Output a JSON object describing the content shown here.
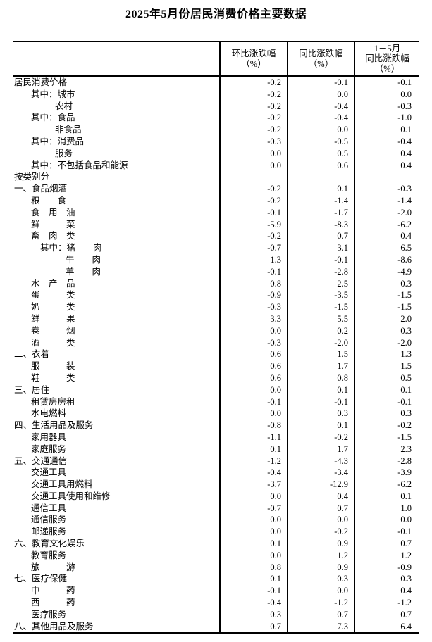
{
  "title": "2025年5月份居民消费价格主要数据",
  "chart_data": {
    "type": "table",
    "title": "2025年5月份居民消费价格主要数据",
    "columns": [
      "环比涨跌幅（%）",
      "同比涨跌幅（%）",
      "1－5月同比涨跌幅（%）"
    ],
    "header_lines": [
      [
        "环比涨跌幅",
        "（%）"
      ],
      [
        "同比涨跌幅",
        "（%）"
      ],
      [
        "1－5月",
        "同比涨跌幅",
        "（%）"
      ]
    ],
    "rows": [
      {
        "label": "居民消费价格",
        "indent": 0,
        "values": [
          "-0.2",
          "-0.1",
          "-0.1"
        ]
      },
      {
        "label": "其中：城市",
        "indent": 1,
        "values": [
          "-0.2",
          "0.0",
          "0.0"
        ]
      },
      {
        "label": "农村",
        "indent": 3,
        "values": [
          "-0.2",
          "-0.4",
          "-0.3"
        ]
      },
      {
        "label": "其中：食品",
        "indent": 1,
        "values": [
          "-0.2",
          "-0.4",
          "-1.0"
        ]
      },
      {
        "label": "非食品",
        "indent": 3,
        "values": [
          "-0.2",
          "0.0",
          "0.1"
        ]
      },
      {
        "label": "其中：消费品",
        "indent": 1,
        "values": [
          "-0.3",
          "-0.5",
          "-0.4"
        ]
      },
      {
        "label": "服务",
        "indent": 3,
        "values": [
          "0.0",
          "0.5",
          "0.4"
        ]
      },
      {
        "label": "其中：不包括食品和能源",
        "indent": 1,
        "values": [
          "0.0",
          "0.6",
          "0.4"
        ]
      },
      {
        "label": "按类别分",
        "indent": 0,
        "values": [
          "",
          "",
          ""
        ]
      },
      {
        "label": "一、食品烟酒",
        "indent": 0,
        "values": [
          "-0.2",
          "0.1",
          "-0.3"
        ]
      },
      {
        "label": "粮　　食",
        "indent": 1,
        "values": [
          "-0.2",
          "-1.4",
          "-1.4"
        ]
      },
      {
        "label": "食　用　油",
        "indent": 1,
        "values": [
          "-0.1",
          "-1.7",
          "-2.0"
        ]
      },
      {
        "label": "鲜　　　菜",
        "indent": 1,
        "values": [
          "-5.9",
          "-8.3",
          "-6.2"
        ]
      },
      {
        "label": "畜　肉　类",
        "indent": 1,
        "values": [
          "-0.2",
          "0.7",
          "0.4"
        ]
      },
      {
        "label": "其中：猪　　肉",
        "indent": 2,
        "values": [
          "-0.7",
          "3.1",
          "6.5"
        ]
      },
      {
        "label": "牛　　肉",
        "indent": 4,
        "values": [
          "1.3",
          "-0.1",
          "-8.6"
        ]
      },
      {
        "label": "羊　　肉",
        "indent": 4,
        "values": [
          "-0.1",
          "-2.8",
          "-4.9"
        ]
      },
      {
        "label": "水　产　品",
        "indent": 1,
        "values": [
          "0.8",
          "2.5",
          "0.3"
        ]
      },
      {
        "label": "蛋　　　类",
        "indent": 1,
        "values": [
          "-0.9",
          "-3.5",
          "-1.5"
        ]
      },
      {
        "label": "奶　　　类",
        "indent": 1,
        "values": [
          "-0.3",
          "-1.5",
          "-1.5"
        ]
      },
      {
        "label": "鲜　　　果",
        "indent": 1,
        "values": [
          "3.3",
          "5.5",
          "2.0"
        ]
      },
      {
        "label": "卷　　　烟",
        "indent": 1,
        "values": [
          "0.0",
          "0.2",
          "0.3"
        ]
      },
      {
        "label": "酒　　　类",
        "indent": 1,
        "values": [
          "-0.3",
          "-2.0",
          "-2.0"
        ]
      },
      {
        "label": "二、衣着",
        "indent": 0,
        "values": [
          "0.6",
          "1.5",
          "1.3"
        ]
      },
      {
        "label": "服　　　装",
        "indent": 1,
        "values": [
          "0.6",
          "1.7",
          "1.5"
        ]
      },
      {
        "label": "鞋　　　类",
        "indent": 1,
        "values": [
          "0.6",
          "0.8",
          "0.5"
        ]
      },
      {
        "label": "三、居住",
        "indent": 0,
        "values": [
          "0.0",
          "0.1",
          "0.1"
        ]
      },
      {
        "label": "租赁房房租",
        "indent": 1,
        "values": [
          "-0.1",
          "-0.1",
          "-0.1"
        ]
      },
      {
        "label": "水电燃料",
        "indent": 1,
        "values": [
          "0.0",
          "0.3",
          "0.3"
        ]
      },
      {
        "label": "四、生活用品及服务",
        "indent": 0,
        "values": [
          "-0.8",
          "0.1",
          "-0.2"
        ]
      },
      {
        "label": "家用器具",
        "indent": 1,
        "values": [
          "-1.1",
          "-0.2",
          "-1.5"
        ]
      },
      {
        "label": "家庭服务",
        "indent": 1,
        "values": [
          "0.1",
          "1.7",
          "2.3"
        ]
      },
      {
        "label": "五、交通通信",
        "indent": 0,
        "values": [
          "-1.2",
          "-4.3",
          "-2.8"
        ]
      },
      {
        "label": "交通工具",
        "indent": 1,
        "values": [
          "-0.4",
          "-3.4",
          "-3.9"
        ]
      },
      {
        "label": "交通工具用燃料",
        "indent": 1,
        "values": [
          "-3.7",
          "-12.9",
          "-6.2"
        ]
      },
      {
        "label": "交通工具使用和维修",
        "indent": 1,
        "values": [
          "0.0",
          "0.4",
          "0.1"
        ]
      },
      {
        "label": "通信工具",
        "indent": 1,
        "values": [
          "-0.7",
          "0.7",
          "1.0"
        ]
      },
      {
        "label": "通信服务",
        "indent": 1,
        "values": [
          "0.0",
          "0.0",
          "0.0"
        ]
      },
      {
        "label": "邮递服务",
        "indent": 1,
        "values": [
          "0.0",
          "-0.2",
          "-0.1"
        ]
      },
      {
        "label": "六、教育文化娱乐",
        "indent": 0,
        "values": [
          "0.1",
          "0.9",
          "0.7"
        ]
      },
      {
        "label": "教育服务",
        "indent": 1,
        "values": [
          "0.0",
          "1.2",
          "1.2"
        ]
      },
      {
        "label": "旅　　　游",
        "indent": 1,
        "values": [
          "0.8",
          "0.9",
          "-0.9"
        ]
      },
      {
        "label": "七、医疗保健",
        "indent": 0,
        "values": [
          "0.1",
          "0.3",
          "0.3"
        ]
      },
      {
        "label": "中　　　药",
        "indent": 1,
        "values": [
          "-0.1",
          "0.0",
          "0.4"
        ]
      },
      {
        "label": "西　　　药",
        "indent": 1,
        "values": [
          "-0.4",
          "-1.2",
          "-1.2"
        ]
      },
      {
        "label": "医疗服务",
        "indent": 1,
        "values": [
          "0.3",
          "0.7",
          "0.7"
        ]
      },
      {
        "label": "八、其他用品及服务",
        "indent": 0,
        "values": [
          "0.7",
          "7.3",
          "6.4"
        ]
      }
    ]
  }
}
